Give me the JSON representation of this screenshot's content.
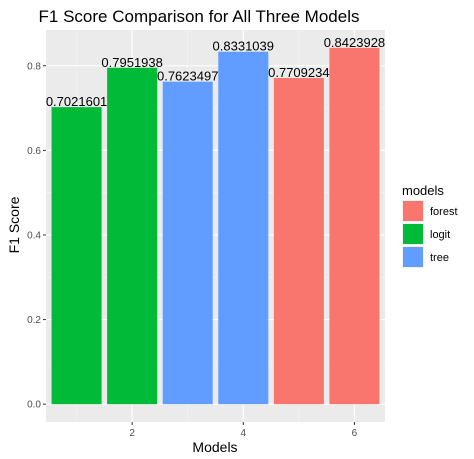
{
  "chart_data": {
    "type": "bar",
    "title": "F1 Score Comparison for All Three Models",
    "xlabel": "Models",
    "ylabel": "F1 Score",
    "x": [
      1,
      2,
      3,
      4,
      5,
      6
    ],
    "values": [
      0.7021601,
      0.7951938,
      0.7623497,
      0.8331039,
      0.7709234,
      0.8423928
    ],
    "data_labels": [
      "0.7021601",
      "0.7951938",
      "0.7623497",
      "0.8331039",
      "0.7709234",
      "0.8423928"
    ],
    "groups": [
      "logit",
      "logit",
      "tree",
      "tree",
      "forest",
      "forest"
    ],
    "xlim": [
      0.45,
      6.55
    ],
    "ylim": [
      0,
      0.8423928
    ],
    "x_ticks": [
      2,
      4,
      6
    ],
    "x_tick_labels": [
      "2",
      "4",
      "6"
    ],
    "y_ticks": [
      0,
      0.2,
      0.4,
      0.6,
      0.8
    ],
    "y_tick_labels": [
      "0.0",
      "0.2",
      "0.4",
      "0.6",
      "0.8"
    ],
    "grid": true,
    "legend": {
      "title": "models",
      "placement": "right",
      "entries": [
        {
          "name": "forest",
          "color": "#F8766D"
        },
        {
          "name": "logit",
          "color": "#00BA38"
        },
        {
          "name": "tree",
          "color": "#619CFF"
        }
      ]
    },
    "colors": {
      "panel_background": "#EBEBEB",
      "grid_major": "#FFFFFF",
      "grid_minor": "#F5F5F5",
      "tick_text": "#4D4D4D",
      "tick_mark": "#333333"
    }
  }
}
